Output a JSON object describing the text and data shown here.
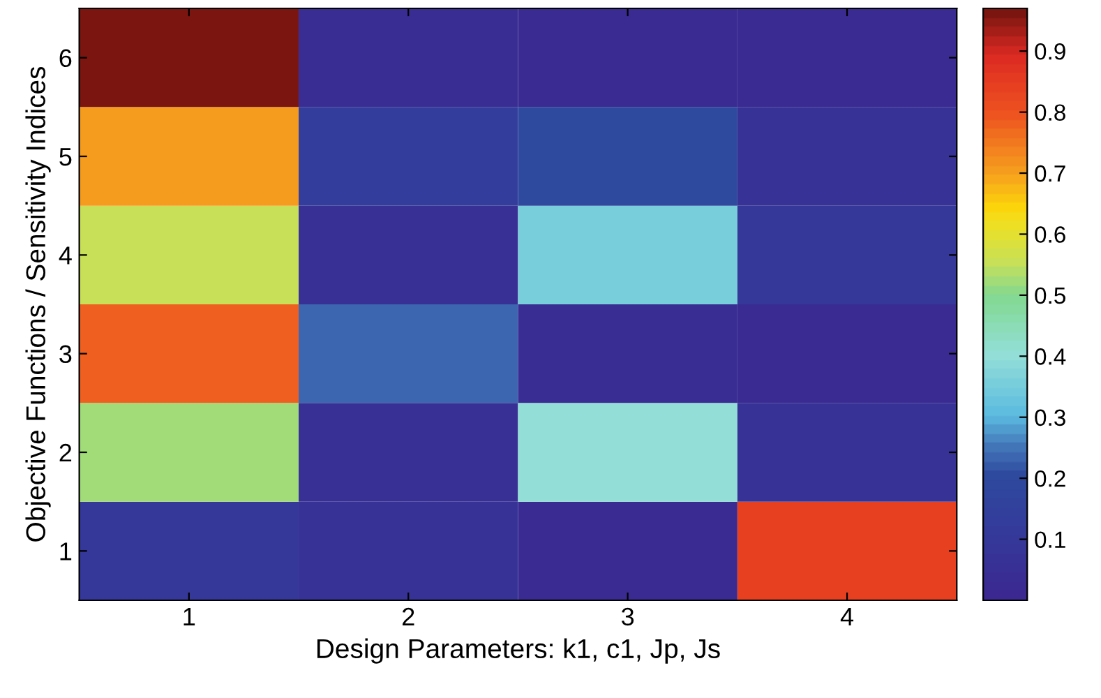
{
  "chart_data": {
    "type": "heatmap",
    "xlabel": "Design Parameters: k1, c1, Jp, Js",
    "ylabel": "Objective Functions / Sensitivity Indices",
    "categories": [
      "1",
      "2",
      "3",
      "4"
    ],
    "y_categories": [
      "6",
      "5",
      "4",
      "3",
      "2",
      "1"
    ],
    "cells": [
      [
        0.97,
        0.04,
        0.02,
        0.02
      ],
      [
        0.7,
        0.13,
        0.2,
        0.07
      ],
      [
        0.55,
        0.06,
        0.36,
        0.1
      ],
      [
        0.78,
        0.23,
        0.04,
        0.02
      ],
      [
        0.53,
        0.05,
        0.4,
        0.07
      ],
      [
        0.1,
        0.07,
        0.02,
        0.84
      ]
    ],
    "clim": [
      0,
      0.97
    ],
    "cticks": [
      0.1,
      0.2,
      0.3,
      0.4,
      0.5,
      0.6,
      0.7,
      0.8,
      0.9
    ]
  }
}
